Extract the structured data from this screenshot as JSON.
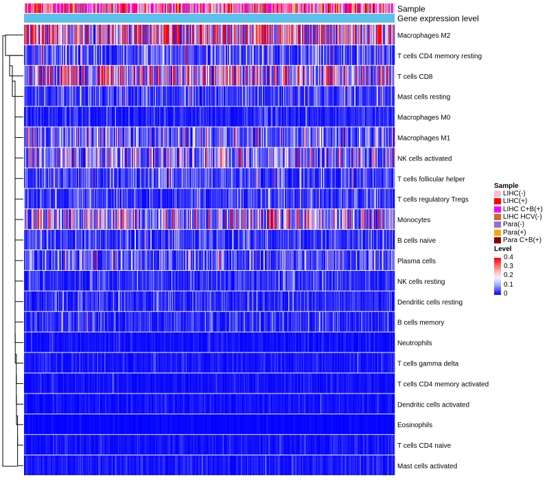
{
  "chart_data": {
    "type": "heatmap",
    "title": "",
    "annotation_tracks": [
      "Sample",
      "Gene expression level"
    ],
    "columns_count": 520,
    "row_clustering": "dendrogram",
    "rows": [
      {
        "label": "Macrophages M2",
        "mean": 0.28
      },
      {
        "label": "T cells CD4 memory resting",
        "mean": 0.08
      },
      {
        "label": "T cells CD8",
        "mean": 0.2
      },
      {
        "label": "Mast cells resting",
        "mean": 0.06
      },
      {
        "label": "Macrophages M0",
        "mean": 0.03
      },
      {
        "label": "Macrophages M1",
        "mean": 0.1
      },
      {
        "label": "NK cells activated",
        "mean": 0.12
      },
      {
        "label": "T cells follicular helper",
        "mean": 0.06
      },
      {
        "label": "T cells regulatory  Tregs",
        "mean": 0.05
      },
      {
        "label": "Monocytes",
        "mean": 0.15
      },
      {
        "label": "B cells naive",
        "mean": 0.05
      },
      {
        "label": "Plasma cells",
        "mean": 0.08
      },
      {
        "label": "NK cells resting",
        "mean": 0.04
      },
      {
        "label": "Dendritic cells resting",
        "mean": 0.04
      },
      {
        "label": "B cells memory",
        "mean": 0.04
      },
      {
        "label": "Neutrophils",
        "mean": 0.015
      },
      {
        "label": "T cells gamma delta",
        "mean": 0.02
      },
      {
        "label": "T cells CD4 memory activated",
        "mean": 0.015
      },
      {
        "label": "Dendritic cells activated",
        "mean": 0.015
      },
      {
        "label": "Eosinophils",
        "mean": 0.005
      },
      {
        "label": "T cells CD4 naive",
        "mean": 0.015
      },
      {
        "label": "Mast cells activated",
        "mean": 0.02
      }
    ],
    "legend": {
      "sample": {
        "title": "Sample",
        "items": [
          {
            "label": "LIHC(-)",
            "color": "#ffc0cb"
          },
          {
            "label": "LIHC(+)",
            "color": "#ff0000"
          },
          {
            "label": "LIHC C+B(+)",
            "color": "#ff00ff"
          },
          {
            "label": "LIHC HCV(-)",
            "color": "#d2691e"
          },
          {
            "label": "Para(-)",
            "color": "#9370db"
          },
          {
            "label": "Para(+)",
            "color": "#ffa500"
          },
          {
            "label": "Para C+B(+)",
            "color": "#8b0000"
          }
        ]
      },
      "level": {
        "title": "Level",
        "ticks": [
          "0.4",
          "0.3",
          "0.2",
          "0.1",
          "0"
        ],
        "range": [
          0,
          0.4
        ],
        "low_color": "#0000ff",
        "mid_color": "#ffffff",
        "high_color": "#ff0000"
      }
    },
    "gene_expression_track_color": "#5bc0eb",
    "sample_track_weights": [
      0.35,
      0.22,
      0.22,
      0.02,
      0.14,
      0.03,
      0.02
    ]
  }
}
